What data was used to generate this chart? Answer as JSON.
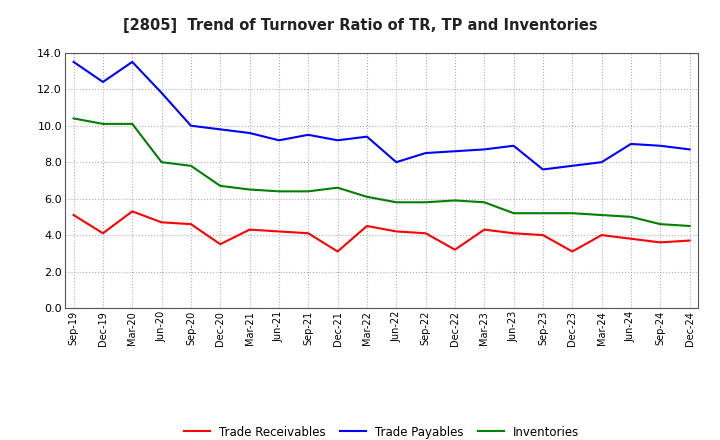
{
  "title": "[2805]  Trend of Turnover Ratio of TR, TP and Inventories",
  "labels": [
    "Sep-19",
    "Dec-19",
    "Mar-20",
    "Jun-20",
    "Sep-20",
    "Dec-20",
    "Mar-21",
    "Jun-21",
    "Sep-21",
    "Dec-21",
    "Mar-22",
    "Jun-22",
    "Sep-22",
    "Dec-22",
    "Mar-23",
    "Jun-23",
    "Sep-23",
    "Dec-23",
    "Mar-24",
    "Jun-24",
    "Sep-24",
    "Dec-24"
  ],
  "trade_receivables": [
    5.1,
    4.1,
    5.3,
    4.7,
    4.6,
    3.5,
    4.3,
    4.2,
    4.1,
    3.1,
    4.5,
    4.2,
    4.1,
    3.2,
    4.3,
    4.1,
    4.0,
    3.1,
    4.0,
    3.8,
    3.6,
    3.7
  ],
  "trade_payables": [
    13.5,
    12.4,
    13.5,
    11.8,
    10.0,
    9.8,
    9.6,
    9.2,
    9.5,
    9.2,
    9.4,
    8.0,
    8.5,
    8.6,
    8.7,
    8.9,
    7.6,
    7.8,
    8.0,
    9.0,
    8.9,
    8.7
  ],
  "inventories": [
    10.4,
    10.1,
    10.1,
    8.0,
    7.8,
    6.7,
    6.5,
    6.4,
    6.4,
    6.6,
    6.1,
    5.8,
    5.8,
    5.9,
    5.8,
    5.2,
    5.2,
    5.2,
    5.1,
    5.0,
    4.6,
    4.5
  ],
  "tr_color": "#ff0000",
  "tp_color": "#0000ff",
  "inv_color": "#008000",
  "ylim": [
    0,
    14.0
  ],
  "yticks": [
    0.0,
    2.0,
    4.0,
    6.0,
    8.0,
    10.0,
    12.0,
    14.0
  ],
  "legend_labels": [
    "Trade Receivables",
    "Trade Payables",
    "Inventories"
  ],
  "background_color": "#ffffff",
  "grid_color": "#b0b0b0"
}
